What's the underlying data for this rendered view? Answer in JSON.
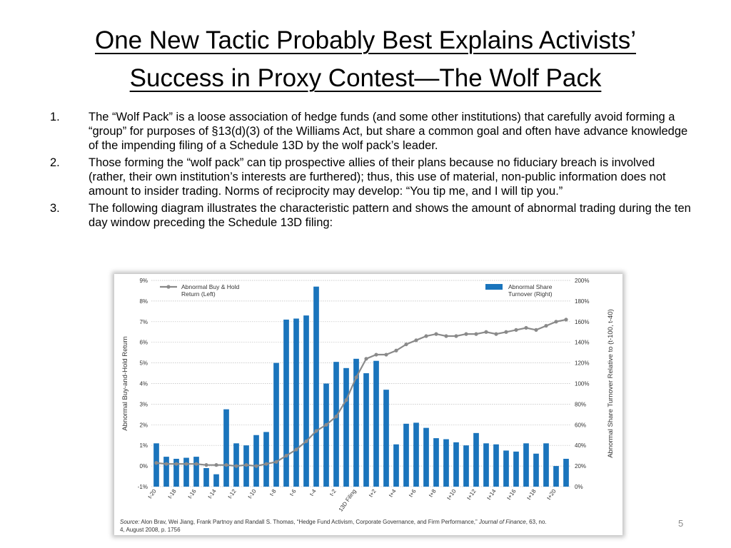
{
  "slide": {
    "title_line1": "One New Tactic Probably Best Explains Activists’",
    "title_line2": "Success in Proxy Contest—The Wolf Pack",
    "page_number": "5",
    "items": [
      {
        "num": "1.",
        "text": "The “Wolf Pack” is a loose association of hedge funds (and some other institutions) that carefully avoid forming a “group” for purposes of §13(d)(3) of the Williams Act, but share a common goal and often have advance knowledge of the impending filing of a Schedule 13D by the wolf pack’s leader."
      },
      {
        "num": "2.",
        "text": "Those forming the “wolf pack” can tip prospective allies of their plans because no fiduciary breach is involved (rather, their own institution’s interests are furthered); thus, this use of material, non-public information does not amount to insider trading. Norms of reciprocity may develop: “You tip me, and I will tip you.”"
      },
      {
        "num": "3.",
        "text": "The following diagram illustrates the characteristic pattern and shows the amount of abnormal trading during the ten day window preceding the Schedule 13D filing:"
      }
    ]
  },
  "source": {
    "label": "Source:",
    "text_before": " Alon Brav, Wei Jiang, Frank Partnoy and Randall S. Thomas, “Hedge Fund Activism, Corporate Governance, and Firm Performance,” ",
    "journal": "Journal of Finance",
    "text_after": ", 63, no. 4, August 2008, p. 1756"
  },
  "chart_data": {
    "type": "bar",
    "categories": [
      "t-20",
      "t-19",
      "t-18",
      "t-17",
      "t-16",
      "t-15",
      "t-14",
      "t-13",
      "t-12",
      "t-11",
      "t-10",
      "t-9",
      "t-8",
      "t-7",
      "t-6",
      "t-5",
      "t-4",
      "t-3",
      "t-2",
      "t-1",
      "13D Filing",
      "t+1",
      "t+2",
      "t+3",
      "t+4",
      "t+5",
      "t+6",
      "t+7",
      "t+8",
      "t+9",
      "t+10",
      "t+11",
      "t+12",
      "t+13",
      "t+14",
      "t+15",
      "t+16",
      "t+17",
      "t+18",
      "t+19",
      "t+20",
      "t+21"
    ],
    "xtick_labels": [
      "t-20",
      "",
      "t-18",
      "",
      "t-16",
      "",
      "t-14",
      "",
      "t-12",
      "",
      "t-10",
      "",
      "t-8",
      "",
      "t-6",
      "",
      "t-4",
      "",
      "t-2",
      "",
      "13D Filing",
      "",
      "t+2",
      "",
      "t+4",
      "",
      "t+6",
      "",
      "t+8",
      "",
      "t+10",
      "",
      "t+12",
      "",
      "t+14",
      "",
      "t+16",
      "",
      "t+18",
      "",
      "t+20",
      ""
    ],
    "series": [
      {
        "name": "Abnormal Share Turnover (Right)",
        "axis": "right",
        "color": "#1a74bc",
        "values": [
          42,
          29,
          27,
          28,
          29,
          18,
          12,
          75,
          42,
          40,
          50,
          53,
          120,
          162,
          163,
          166,
          194,
          100,
          121,
          115,
          124,
          110,
          122,
          94,
          41,
          61,
          62,
          57,
          47,
          46,
          43,
          40,
          52,
          42,
          41,
          35,
          34,
          42,
          32,
          42,
          20,
          27
        ]
      },
      {
        "name": "Abnormal Buy & Hold Return (Left)",
        "axis": "left",
        "color": "#8a8a8a",
        "values": [
          0.15,
          0.1,
          0.1,
          0.1,
          0.1,
          0.05,
          0.05,
          0.05,
          0.0,
          0.05,
          0.0,
          0.1,
          0.2,
          0.5,
          0.8,
          1.2,
          1.7,
          2.0,
          2.4,
          3.2,
          4.3,
          5.2,
          5.4,
          5.4,
          5.6,
          5.9,
          6.1,
          6.3,
          6.4,
          6.3,
          6.3,
          6.4,
          6.4,
          6.5,
          6.4,
          6.5,
          6.6,
          6.7,
          6.6,
          6.8,
          7.0,
          7.1
        ]
      }
    ],
    "y_left": {
      "label": "Abnormal Buy-and-Hold Return",
      "range": [
        -1,
        9
      ],
      "ticks": [
        "-1%",
        "0%",
        "1%",
        "2%",
        "3%",
        "4%",
        "5%",
        "6%",
        "7%",
        "8%",
        "9%"
      ]
    },
    "y_right": {
      "label": "Abnormal Share Turnover Relative to (t-100, t-40)",
      "range": [
        0,
        200
      ],
      "ticks": [
        "0%",
        "20%",
        "40%",
        "60%",
        "80%",
        "100%",
        "120%",
        "140%",
        "160%",
        "180%",
        "200%"
      ]
    },
    "legend": {
      "line_label_1": "Abnormal Buy & Hold",
      "line_label_2": "Return (Left)",
      "bar_label_1": "Abnormal Share",
      "bar_label_2": "Turnover (Right)"
    },
    "grid": true
  }
}
